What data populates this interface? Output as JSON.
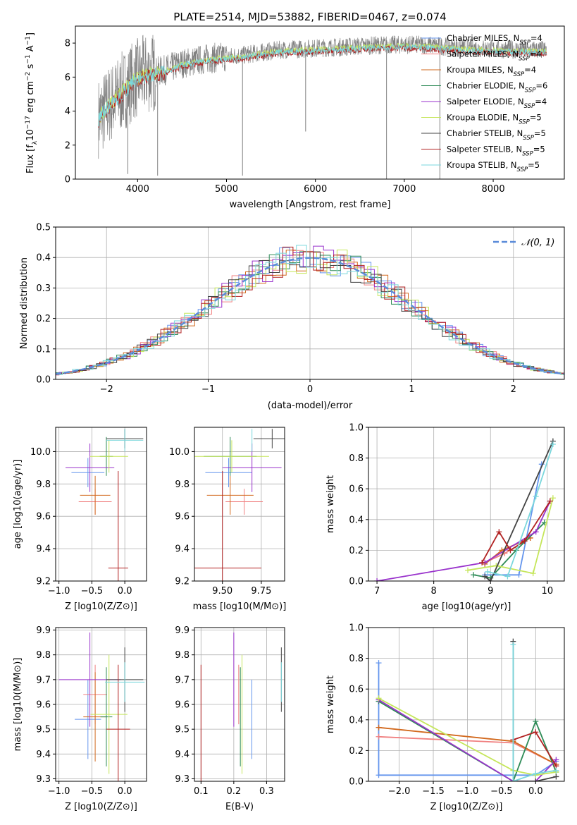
{
  "colors": {
    "Chabrier MILES": "#6495ed",
    "Salpeter MILES": "#f08080",
    "Kroupa MILES": "#d2691e",
    "Chabrier ELODIE": "#2e8b57",
    "Salpeter ELODIE": "#9932cc",
    "Kroupa ELODIE": "#c5e65a",
    "Chabrier STELIB": "#444444",
    "Salpeter STELIB": "#b22222",
    "Kroupa STELIB": "#7ad7dc",
    "data": "#808080",
    "normal": "#5b8bd9"
  },
  "chart_data": [
    {
      "id": "spectrum",
      "type": "line",
      "title": "PLATE=2514, MJD=53882, FIBERID=0467, z=0.074",
      "xlabel": "wavelength [Angstrom, rest frame]",
      "ylabel_parts": [
        "Flux [f",
        "λ",
        "10",
        "−17",
        " erg cm",
        "−2",
        " s",
        "−1",
        " A",
        "−1",
        "]"
      ],
      "xlim": [
        3300,
        8800
      ],
      "ylim": [
        0,
        9
      ],
      "xticks": [
        4000,
        5000,
        6000,
        7000,
        8000
      ],
      "yticks": [
        0,
        2,
        4,
        6,
        8
      ],
      "legend_position": "upper right",
      "legend": [
        [
          "Chabrier MILES, N",
          "SSP",
          "=4"
        ],
        [
          "Salpeter MILES, N",
          "SSP",
          "=4"
        ],
        [
          "Kroupa MILES, N",
          "SSP",
          "=4"
        ],
        [
          "Chabrier ELODIE, N",
          "SSP",
          "=6"
        ],
        [
          "Salpeter ELODIE, N",
          "SSP",
          "=4"
        ],
        [
          "Kroupa ELODIE, N",
          "SSP",
          "=5"
        ],
        [
          "Chabrier STELIB, N",
          "SSP",
          "=5"
        ],
        [
          "Salpeter STELIB, N",
          "SSP",
          "=5"
        ],
        [
          "Kroupa STELIB, N",
          "SSP",
          "=5"
        ]
      ],
      "continuum": [
        [
          3560,
          3.6
        ],
        [
          3650,
          4.2
        ],
        [
          3800,
          5.0
        ],
        [
          3950,
          5.8
        ],
        [
          4100,
          6.2
        ],
        [
          4300,
          6.4
        ],
        [
          4500,
          6.8
        ],
        [
          4800,
          7.1
        ],
        [
          5200,
          7.3
        ],
        [
          5600,
          7.6
        ],
        [
          6000,
          7.7
        ],
        [
          6400,
          7.8
        ],
        [
          6800,
          7.9
        ],
        [
          7200,
          7.9
        ],
        [
          7600,
          7.75
        ],
        [
          8000,
          7.65
        ],
        [
          8400,
          7.6
        ],
        [
          8600,
          7.6
        ]
      ],
      "dips": [
        [
          5180,
          0.2
        ],
        [
          5890,
          2.8
        ],
        [
          6800,
          0.0
        ],
        [
          7400,
          0.0
        ],
        [
          3890,
          0.3
        ],
        [
          4225,
          0.2
        ]
      ]
    },
    {
      "id": "residuals",
      "type": "line",
      "xlabel": "(data-model)/error",
      "ylabel": "Normed distribution",
      "xlim": [
        -2.5,
        2.5
      ],
      "ylim": [
        0,
        0.5
      ],
      "xticks": [
        -2,
        -1,
        0,
        1,
        2
      ],
      "yticks": [
        0.0,
        0.1,
        0.2,
        0.3,
        0.4,
        0.5
      ],
      "ytick_labels": [
        "0.0",
        "0.1",
        "0.2",
        "0.3",
        "0.4",
        "0.5"
      ],
      "series_name": "N(0, 1)",
      "bin_width": 0.1,
      "grid": true,
      "legend_position": "upper right"
    },
    {
      "id": "age-vs-Z",
      "type": "scatter",
      "xlabel": "Z [log10(Z/Z⊙)]",
      "ylabel": "age  [log10(age/yr)]",
      "xlim": [
        -1.05,
        0.33
      ],
      "ylim": [
        9.2,
        10.15
      ],
      "xticks": [
        -1.0,
        -0.5,
        0.0
      ],
      "xtick_labels": [
        "−1.0",
        "−0.5",
        "0.0"
      ],
      "yticks": [
        9.2,
        9.4,
        9.6,
        9.8,
        10.0
      ],
      "ytick_labels": [
        "9.2",
        "9.4",
        "9.6",
        "9.8",
        "10.0"
      ],
      "points": [
        {
          "s": "Chabrier MILES",
          "x": -0.56,
          "xe": 0.25,
          "y": 9.87,
          "ye": 0.09
        },
        {
          "s": "Salpeter MILES",
          "x": -0.45,
          "xe": 0.25,
          "y": 9.69,
          "ye": 0.08
        },
        {
          "s": "Kroupa MILES",
          "x": -0.45,
          "xe": 0.23,
          "y": 9.73,
          "ye": 0.12
        },
        {
          "s": "Chabrier ELODIE",
          "x": -0.28,
          "xe": 0.1,
          "y": 9.97,
          "ye": 0.12
        },
        {
          "s": "Salpeter ELODIE",
          "x": -0.53,
          "xe": 0.37,
          "y": 9.9,
          "ye": 0.15
        },
        {
          "s": "Kroupa ELODIE",
          "x": -0.24,
          "xe": 0.29,
          "y": 9.97,
          "ye": 0.1
        },
        {
          "s": "Chabrier STELIB",
          "x": 0.0,
          "xe": 0.28,
          "y": 10.08,
          "ye": 0.06
        },
        {
          "s": "Salpeter STELIB",
          "x": -0.1,
          "xe": 0.15,
          "y": 9.28,
          "ye": 0.6
        },
        {
          "s": "Kroupa STELIB",
          "x": 0.0,
          "xe": 0.28,
          "y": 10.07,
          "ye": 0.07
        }
      ]
    },
    {
      "id": "age-vs-mass",
      "type": "scatter",
      "xlabel": "mass [log10(M/M⊙)]",
      "xlim": [
        9.32,
        9.9
      ],
      "ylim": [
        9.2,
        10.15
      ],
      "xticks": [
        9.5,
        9.75
      ],
      "xtick_labels": [
        "9.50",
        "9.75"
      ],
      "yticks": [
        9.2,
        9.4,
        9.6,
        9.8,
        10.0
      ],
      "ytick_labels": [
        "9.2",
        "9.4",
        "9.6",
        "9.8",
        "10.0"
      ],
      "points": [
        {
          "s": "Chabrier MILES",
          "x": 9.54,
          "xe": 0.15,
          "y": 9.87,
          "ye": 0.09
        },
        {
          "s": "Salpeter MILES",
          "x": 9.64,
          "xe": 0.12,
          "y": 9.69,
          "ye": 0.08
        },
        {
          "s": "Kroupa MILES",
          "x": 9.55,
          "xe": 0.15,
          "y": 9.73,
          "ye": 0.12
        },
        {
          "s": "Chabrier ELODIE",
          "x": 9.55,
          "xe": 0.17,
          "y": 9.97,
          "ye": 0.12
        },
        {
          "s": "Salpeter ELODIE",
          "x": 9.69,
          "xe": 0.19,
          "y": 9.9,
          "ye": 0.15
        },
        {
          "s": "Kroupa ELODIE",
          "x": 9.56,
          "xe": 0.24,
          "y": 9.97,
          "ye": 0.1
        },
        {
          "s": "Chabrier STELIB",
          "x": 9.82,
          "xe": 0.12,
          "y": 10.08,
          "ye": 0.06
        },
        {
          "s": "Salpeter STELIB",
          "x": 9.5,
          "xe": 0.25,
          "y": 9.28,
          "ye": 0.6
        },
        {
          "s": "Kroupa STELIB",
          "x": 9.69,
          "xe": 0.0,
          "y": 10.07,
          "ye": 0.07
        }
      ]
    },
    {
      "id": "weight-vs-age",
      "type": "line",
      "xlabel": "age  [log10(age/yr)]",
      "ylabel": "mass weight",
      "xlim": [
        6.85,
        10.3
      ],
      "ylim": [
        0,
        1.0
      ],
      "xticks": [
        7,
        8,
        9,
        10
      ],
      "yticks": [
        0.0,
        0.2,
        0.4,
        0.6,
        0.8,
        1.0
      ],
      "ytick_labels": [
        "0.0",
        "0.2",
        "0.4",
        "0.6",
        "0.8",
        "1.0"
      ],
      "series": [
        {
          "s": "Chabrier MILES",
          "pts": [
            [
              8.9,
              0.04
            ],
            [
              9.5,
              0.04
            ],
            [
              9.9,
              0.76
            ]
          ]
        },
        {
          "s": "Salpeter MILES",
          "pts": [
            [
              8.9,
              0.12
            ],
            [
              9.25,
              0.18
            ],
            [
              9.7,
              0.28
            ]
          ]
        },
        {
          "s": "Kroupa MILES",
          "pts": [
            [
              8.9,
              0.11
            ],
            [
              9.2,
              0.2
            ],
            [
              9.7,
              0.28
            ]
          ]
        },
        {
          "s": "Chabrier ELODIE",
          "pts": [
            [
              8.7,
              0.04
            ],
            [
              9.0,
              0.02
            ],
            [
              9.45,
              0.2
            ],
            [
              9.95,
              0.38
            ]
          ]
        },
        {
          "s": "Salpeter ELODIE",
          "pts": [
            [
              7.0,
              0.0
            ],
            [
              8.9,
              0.12
            ],
            [
              9.8,
              0.32
            ],
            [
              10.05,
              0.52
            ]
          ]
        },
        {
          "s": "Kroupa ELODIE",
          "pts": [
            [
              8.6,
              0.07
            ],
            [
              9.1,
              0.1
            ],
            [
              9.75,
              0.05
            ],
            [
              10.1,
              0.54
            ]
          ]
        },
        {
          "s": "Chabrier STELIB",
          "pts": [
            [
              8.9,
              0.03
            ],
            [
              9.0,
              0.0
            ],
            [
              10.1,
              0.91
            ]
          ]
        },
        {
          "s": "Salpeter STELIB",
          "pts": [
            [
              8.85,
              0.12
            ],
            [
              9.15,
              0.32
            ],
            [
              9.35,
              0.2
            ],
            [
              9.6,
              0.26
            ],
            [
              10.05,
              0.52
            ]
          ]
        },
        {
          "s": "Kroupa STELIB",
          "pts": [
            [
              8.95,
              0.06
            ],
            [
              9.3,
              0.03
            ],
            [
              9.8,
              0.55
            ],
            [
              10.1,
              0.89
            ]
          ]
        }
      ]
    },
    {
      "id": "mass-vs-Z",
      "type": "scatter",
      "xlabel": "Z [log10(Z/Z⊙)]",
      "ylabel": "mass [log10(M/M⊙)]",
      "xlim": [
        -1.05,
        0.33
      ],
      "ylim": [
        9.29,
        9.91
      ],
      "xticks": [
        -1.0,
        -0.5,
        0.0
      ],
      "xtick_labels": [
        "−1.0",
        "−0.5",
        "0.0"
      ],
      "yticks": [
        9.3,
        9.4,
        9.5,
        9.6,
        9.7,
        9.8,
        9.9
      ],
      "ytick_labels": [
        "9.3",
        "9.4",
        "9.6",
        "9.7",
        "9.8",
        "9.9"
      ],
      "ytick_labels_full": [
        "9.3",
        "9.4",
        "9.5",
        "9.6",
        "9.7",
        "9.8",
        "9.9"
      ],
      "points": [
        {
          "s": "Chabrier MILES",
          "x": -0.56,
          "xe": 0.2,
          "y": 9.54,
          "ye": 0.16
        },
        {
          "s": "Salpeter MILES",
          "x": -0.45,
          "xe": 0.18,
          "y": 9.64,
          "ye": 0.12
        },
        {
          "s": "Kroupa MILES",
          "x": -0.45,
          "xe": 0.18,
          "y": 9.55,
          "ye": 0.18
        },
        {
          "s": "Chabrier ELODIE",
          "x": -0.28,
          "xe": 0.09,
          "y": 9.55,
          "ye": 0.2
        },
        {
          "s": "Salpeter ELODIE",
          "x": -0.53,
          "xe": 0.47,
          "y": 9.7,
          "ye": 0.19
        },
        {
          "s": "Kroupa ELODIE",
          "x": -0.24,
          "xe": 0.28,
          "y": 9.56,
          "ye": 0.24
        },
        {
          "s": "Chabrier STELIB",
          "x": 0.0,
          "xe": 0.28,
          "y": 9.7,
          "ye": 0.13
        },
        {
          "s": "Salpeter STELIB",
          "x": -0.1,
          "xe": 0.18,
          "y": 9.5,
          "ye": 0.26
        },
        {
          "s": "Kroupa STELIB",
          "x": 0.0,
          "xe": 0.3,
          "y": 9.69,
          "ye": 0.08
        }
      ]
    },
    {
      "id": "mass-vs-ebv",
      "type": "scatter",
      "xlabel": "E(B-V)",
      "xlim": [
        0.08,
        0.355
      ],
      "ylim": [
        9.29,
        9.91
      ],
      "xticks": [
        0.1,
        0.2,
        0.3
      ],
      "xtick_labels": [
        "0.1",
        "0.2",
        "0.3"
      ],
      "yticks": [
        9.3,
        9.4,
        9.5,
        9.6,
        9.7,
        9.8,
        9.9
      ],
      "ytick_labels_full": [
        "9.3",
        "9.4",
        "9.5",
        "9.6",
        "9.7",
        "9.8",
        "9.9"
      ],
      "points": [
        {
          "s": "Chabrier MILES",
          "x": 0.255,
          "y": 9.54,
          "ye": 0.16
        },
        {
          "s": "Salpeter MILES",
          "x": 0.215,
          "y": 9.64,
          "ye": 0.12
        },
        {
          "s": "Kroupa MILES",
          "x": 0.225,
          "y": 9.55,
          "ye": 0.18
        },
        {
          "s": "Chabrier ELODIE",
          "x": 0.22,
          "y": 9.55,
          "ye": 0.2
        },
        {
          "s": "Salpeter ELODIE",
          "x": 0.2,
          "y": 9.7,
          "ye": 0.19
        },
        {
          "s": "Kroupa ELODIE",
          "x": 0.225,
          "y": 9.56,
          "ye": 0.24
        },
        {
          "s": "Chabrier STELIB",
          "x": 0.345,
          "y": 9.7,
          "ye": 0.13
        },
        {
          "s": "Salpeter STELIB",
          "x": 0.1,
          "y": 9.5,
          "ye": 0.26
        },
        {
          "s": "Kroupa STELIB",
          "x": 0.345,
          "y": 9.69,
          "ye": 0.08
        }
      ]
    },
    {
      "id": "weight-vs-Z",
      "type": "line",
      "xlabel": "Z [log10(Z/Z⊙)]",
      "ylabel": "mass weight",
      "xlim": [
        -2.45,
        0.42
      ],
      "ylim": [
        0,
        1.0
      ],
      "xticks": [
        -2.0,
        -1.5,
        -1.0,
        -0.5,
        0.0
      ],
      "xtick_labels": [
        "−2.0",
        "−1.5",
        "−1.0",
        "−0.5",
        "0.0"
      ],
      "yticks": [
        0.0,
        0.2,
        0.4,
        0.6,
        0.8,
        1.0
      ],
      "ytick_labels": [
        "0.0",
        "0.2",
        "0.4",
        "0.6",
        "0.8",
        "1.0"
      ],
      "series": [
        {
          "s": "Chabrier MILES",
          "pts": [
            [
              -2.3,
              0.77
            ],
            [
              -2.3,
              0.04
            ],
            [
              -0.33,
              0.04
            ],
            [
              0.0,
              0.04
            ],
            [
              0.3,
              0.13
            ]
          ]
        },
        {
          "s": "Salpeter MILES",
          "pts": [
            [
              -2.3,
              0.29
            ],
            [
              -0.33,
              0.25
            ],
            [
              0.3,
              0.11
            ]
          ]
        },
        {
          "s": "Kroupa MILES",
          "pts": [
            [
              -2.3,
              0.35
            ],
            [
              -0.33,
              0.26
            ],
            [
              0.3,
              0.11
            ]
          ]
        },
        {
          "s": "Chabrier ELODIE",
          "pts": [
            [
              -2.3,
              0.52
            ],
            [
              -0.33,
              0.0
            ],
            [
              0.0,
              0.39
            ],
            [
              0.3,
              0.06
            ]
          ]
        },
        {
          "s": "Salpeter ELODIE",
          "pts": [
            [
              -2.3,
              0.53
            ],
            [
              -0.33,
              0.0
            ],
            [
              0.0,
              0.0
            ],
            [
              0.3,
              0.14
            ]
          ]
        },
        {
          "s": "Kroupa ELODIE",
          "pts": [
            [
              -2.3,
              0.54
            ],
            [
              -0.33,
              0.07
            ],
            [
              0.0,
              0.04
            ],
            [
              0.3,
              0.06
            ]
          ]
        },
        {
          "s": "Chabrier STELIB",
          "pts": [
            [
              -0.33,
              0.91
            ],
            [
              -0.33,
              0.0
            ],
            [
              0.0,
              0.0
            ],
            [
              0.3,
              0.03
            ]
          ]
        },
        {
          "s": "Salpeter STELIB",
          "pts": [
            [
              -0.33,
              0.27
            ],
            [
              0.0,
              0.32
            ],
            [
              0.3,
              0.1
            ]
          ]
        },
        {
          "s": "Kroupa STELIB",
          "pts": [
            [
              -0.33,
              0.89
            ],
            [
              -0.33,
              0.0
            ],
            [
              0.0,
              0.05
            ],
            [
              0.3,
              0.07
            ]
          ]
        }
      ]
    }
  ]
}
